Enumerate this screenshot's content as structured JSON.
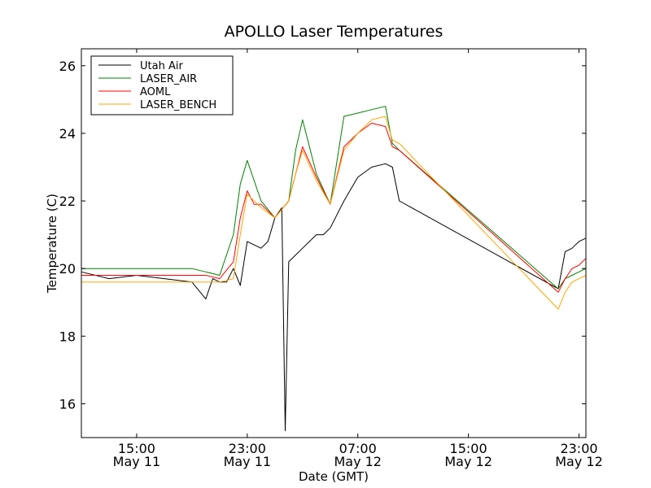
{
  "chart_data": {
    "type": "line",
    "title": "APOLLO Laser Temperatures",
    "xlabel": "Date (GMT)",
    "ylabel": "Temperature (C)",
    "ylim": [
      15,
      26.5
    ],
    "xlim": [
      "May 11 11:00",
      "May 12 23:30"
    ],
    "x_ticks": [
      {
        "x": "May 11 15:00",
        "time": "15:00",
        "date": "May 11"
      },
      {
        "x": "May 11 23:00",
        "time": "23:00",
        "date": "May 11"
      },
      {
        "x": "May 12 07:00",
        "time": "07:00",
        "date": "May 12"
      },
      {
        "x": "May 12 15:00",
        "time": "15:00",
        "date": "May 12"
      },
      {
        "x": "May 12 23:00",
        "time": "23:00",
        "date": "May 12"
      }
    ],
    "y_ticks": [
      "16",
      "18",
      "20",
      "22",
      "24",
      "26"
    ],
    "grid": false,
    "legend_position": "top-left",
    "series": [
      {
        "name": "Utah Air",
        "color": "#000000",
        "x": [
          "May 11 11:00",
          "May 11 13:00",
          "May 11 15:00",
          "May 11 17:00",
          "May 11 19:00",
          "May 11 20:00",
          "May 11 20:30",
          "May 11 21:00",
          "May 11 21:30",
          "May 11 22:00",
          "May 11 22:30",
          "May 11 23:00",
          "May 11 23:30",
          "May 12 00:00",
          "May 12 00:30",
          "May 12 01:00",
          "May 12 01:30",
          "May 12 01:45",
          "May 12 02:00",
          "May 12 02:30",
          "May 12 03:00",
          "May 12 03:30",
          "May 12 04:00",
          "May 12 04:30",
          "May 12 05:00",
          "May 12 06:00",
          "May 12 07:00",
          "May 12 08:00",
          "May 12 09:00",
          "May 12 09:30",
          "May 12 10:00",
          "May 12 21:30",
          "May 12 22:00",
          "May 12 22:30",
          "May 12 23:00",
          "May 12 23:30"
        ],
        "y": [
          19.9,
          19.7,
          19.8,
          19.7,
          19.6,
          19.1,
          19.7,
          19.6,
          19.6,
          20.0,
          19.5,
          20.8,
          20.7,
          20.6,
          20.8,
          21.5,
          21.8,
          15.2,
          20.2,
          20.4,
          20.6,
          20.8,
          21.0,
          21.0,
          21.2,
          22.0,
          22.7,
          23.0,
          23.1,
          23.0,
          22.0,
          19.4,
          20.5,
          20.6,
          20.8,
          20.9
        ]
      },
      {
        "name": "LASER_AIR",
        "color": "#008000",
        "x": [
          "May 11 11:00",
          "May 11 15:00",
          "May 11 19:00",
          "May 11 20:00",
          "May 11 21:00",
          "May 11 22:00",
          "May 11 22:30",
          "May 11 23:00",
          "May 11 23:30",
          "May 12 00:00",
          "May 12 01:00",
          "May 12 02:00",
          "May 12 02:30",
          "May 12 03:00",
          "May 12 04:00",
          "May 12 05:00",
          "May 12 06:00",
          "May 12 07:00",
          "May 12 08:00",
          "May 12 09:00",
          "May 12 09:30",
          "May 12 10:00",
          "May 12 21:30",
          "May 12 22:00",
          "May 12 22:30",
          "May 12 23:00",
          "May 12 23:30"
        ],
        "y": [
          20.0,
          20.0,
          20.0,
          19.9,
          19.8,
          21.0,
          22.5,
          23.2,
          22.6,
          22.0,
          21.5,
          22.0,
          23.5,
          24.4,
          22.8,
          21.9,
          24.5,
          24.6,
          24.7,
          24.8,
          23.7,
          23.5,
          19.4,
          19.7,
          19.8,
          19.9,
          20.0
        ]
      },
      {
        "name": "AOML",
        "color": "#ff0000",
        "x": [
          "May 11 11:00",
          "May 11 15:00",
          "May 11 19:00",
          "May 11 20:00",
          "May 11 21:00",
          "May 11 22:00",
          "May 11 22:30",
          "May 11 23:00",
          "May 11 23:30",
          "May 12 00:00",
          "May 12 01:00",
          "May 12 02:00",
          "May 12 02:30",
          "May 12 03:00",
          "May 12 04:00",
          "May 12 05:00",
          "May 12 06:00",
          "May 12 07:00",
          "May 12 08:00",
          "May 12 09:00",
          "May 12 09:30",
          "May 12 10:00",
          "May 12 21:30",
          "May 12 22:00",
          "May 12 22:30",
          "May 12 23:00",
          "May 12 23:30"
        ],
        "y": [
          19.8,
          19.8,
          19.8,
          19.8,
          19.7,
          20.2,
          21.5,
          22.3,
          21.9,
          21.9,
          21.5,
          22.0,
          22.8,
          23.6,
          22.7,
          21.9,
          23.6,
          24.0,
          24.3,
          24.2,
          23.6,
          23.5,
          19.3,
          19.7,
          20.0,
          20.1,
          20.3
        ]
      },
      {
        "name": "LASER_BENCH",
        "color": "#ffa500",
        "x": [
          "May 11 11:00",
          "May 11 15:00",
          "May 11 19:00",
          "May 11 20:00",
          "May 11 21:00",
          "May 11 22:00",
          "May 11 22:30",
          "May 11 23:00",
          "May 11 23:30",
          "May 12 00:00",
          "May 12 01:00",
          "May 12 02:00",
          "May 12 02:30",
          "May 12 03:00",
          "May 12 04:00",
          "May 12 05:00",
          "May 12 06:00",
          "May 12 07:00",
          "May 12 08:00",
          "May 12 09:00",
          "May 12 09:30",
          "May 12 10:00",
          "May 12 21:30",
          "May 12 22:00",
          "May 12 22:30",
          "May 12 23:00",
          "May 12 23:30"
        ],
        "y": [
          19.6,
          19.6,
          19.6,
          19.6,
          19.6,
          19.7,
          21.0,
          22.2,
          22.0,
          21.8,
          21.5,
          22.0,
          22.8,
          23.5,
          22.6,
          21.9,
          23.5,
          24.0,
          24.4,
          24.5,
          23.8,
          23.7,
          18.8,
          19.3,
          19.6,
          19.7,
          19.8
        ]
      }
    ]
  }
}
